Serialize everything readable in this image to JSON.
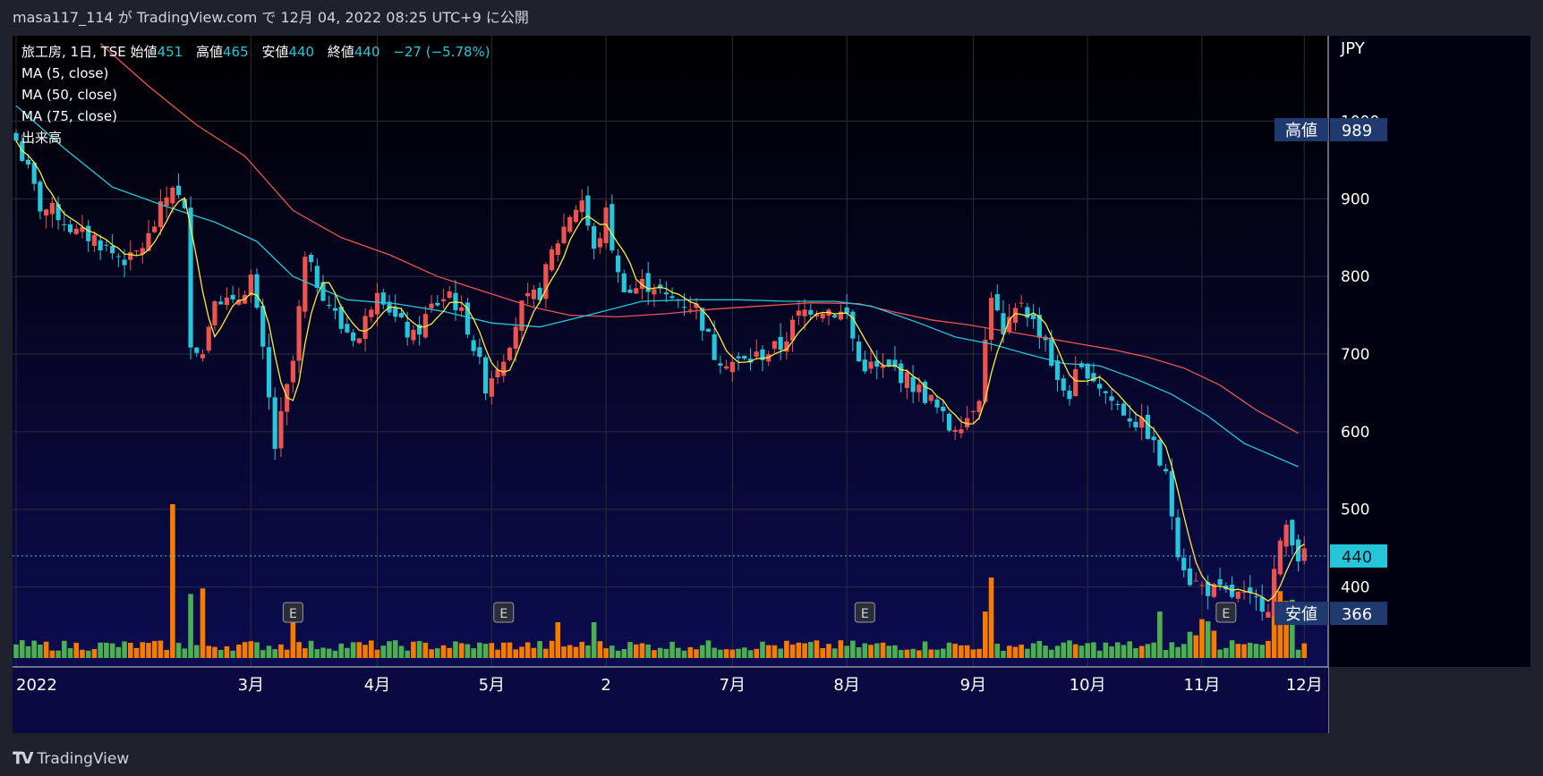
{
  "header": {
    "publisher": "masa117_114",
    "text_ga": "が",
    "platform": "TradingView.com",
    "text_de": "で",
    "date": "12月 04, 2022 08:25 UTC+9",
    "text_published": "に公開"
  },
  "legend": {
    "symbol": "旅工房, 1日, TSE",
    "open_label": "始値",
    "open_value": "451",
    "high_label": "高値",
    "high_value": "465",
    "low_label": "安値",
    "low_value": "440",
    "close_label": "終値",
    "close_value": "440",
    "change": "−27 (−5.78%)",
    "ma5": "MA (5, close)",
    "ma50": "MA (50, close)",
    "ma75": "MA (75, close)",
    "volume": "出来高"
  },
  "footer": {
    "logo_text": "TradingView"
  },
  "colors": {
    "background_top": "#000000",
    "background_bottom": "#0c0c50",
    "up_candle": "#ef5350",
    "down_candle": "#26c6da",
    "ma5": "#ffeb3b",
    "ma50": "#26c6da",
    "ma75": "#ef5350",
    "volume_up": "#f57c00",
    "volume_down": "#4caf50",
    "price_label_bg": "#1e3a6e",
    "current_price_bg": "#26c6da"
  },
  "chart_data": {
    "type": "candlestick",
    "currency": "JPY",
    "y_ticks": [
      400,
      500,
      600,
      700,
      800,
      900,
      1000
    ],
    "ylim": [
      350,
      1110
    ],
    "x_tick_labels": [
      "2022",
      "3月",
      "4月",
      "5月",
      "2",
      "7月",
      "8月",
      "9月",
      "10月",
      "11月",
      "12月"
    ],
    "x_tick_index": [
      0,
      39,
      60,
      79,
      98,
      119,
      138,
      159,
      178,
      197,
      214
    ],
    "markers": {
      "high_label": "高値",
      "high_value": 989,
      "low_label": "安値",
      "low_value": 366,
      "current_price": 440
    },
    "earnings_marker_label": "E",
    "earnings_marker_index": [
      46,
      81,
      141,
      201
    ],
    "high_anchor_index": 0,
    "low_anchor_index": 208,
    "anchors": [
      [
        0,
        975
      ],
      [
        2,
        935
      ],
      [
        4,
        890
      ],
      [
        7,
        880
      ],
      [
        10,
        855
      ],
      [
        13,
        850
      ],
      [
        16,
        830
      ],
      [
        19,
        820
      ],
      [
        22,
        850
      ],
      [
        26,
        920
      ],
      [
        28,
        880
      ],
      [
        29,
        720
      ],
      [
        31,
        700
      ],
      [
        33,
        780
      ],
      [
        36,
        760
      ],
      [
        39,
        800
      ],
      [
        41,
        700
      ],
      [
        43,
        580
      ],
      [
        46,
        690
      ],
      [
        48,
        820
      ],
      [
        51,
        780
      ],
      [
        54,
        735
      ],
      [
        57,
        720
      ],
      [
        60,
        790
      ],
      [
        63,
        745
      ],
      [
        66,
        720
      ],
      [
        69,
        760
      ],
      [
        72,
        780
      ],
      [
        75,
        735
      ],
      [
        78,
        660
      ],
      [
        81,
        700
      ],
      [
        84,
        760
      ],
      [
        87,
        780
      ],
      [
        89,
        830
      ],
      [
        92,
        880
      ],
      [
        94,
        900
      ],
      [
        96,
        830
      ],
      [
        98,
        880
      ],
      [
        100,
        800
      ],
      [
        102,
        780
      ],
      [
        104,
        790
      ],
      [
        106,
        790
      ],
      [
        108,
        770
      ],
      [
        110,
        770
      ],
      [
        113,
        760
      ],
      [
        116,
        700
      ],
      [
        119,
        690
      ],
      [
        121,
        690
      ],
      [
        124,
        700
      ],
      [
        127,
        710
      ],
      [
        130,
        750
      ],
      [
        132,
        760
      ],
      [
        134,
        760
      ],
      [
        138,
        750
      ],
      [
        140,
        690
      ],
      [
        143,
        680
      ],
      [
        146,
        680
      ],
      [
        149,
        660
      ],
      [
        152,
        640
      ],
      [
        155,
        605
      ],
      [
        158,
        620
      ],
      [
        160,
        650
      ],
      [
        162,
        780
      ],
      [
        164,
        720
      ],
      [
        167,
        770
      ],
      [
        169,
        740
      ],
      [
        171,
        720
      ],
      [
        173,
        660
      ],
      [
        175,
        650
      ],
      [
        176,
        670
      ],
      [
        178,
        680
      ],
      [
        180,
        660
      ],
      [
        182,
        640
      ],
      [
        185,
        620
      ],
      [
        188,
        600
      ],
      [
        189,
        580
      ],
      [
        191,
        540
      ],
      [
        193,
        450
      ],
      [
        195,
        410
      ],
      [
        197,
        400
      ],
      [
        199,
        395
      ],
      [
        201,
        390
      ],
      [
        203,
        388
      ],
      [
        205,
        382
      ],
      [
        207,
        380
      ],
      [
        208,
        378
      ],
      [
        209,
        420
      ],
      [
        211,
        480
      ],
      [
        212,
        465
      ],
      [
        213,
        440
      ]
    ],
    "ma50_points": [
      [
        0,
        1020
      ],
      [
        8,
        965
      ],
      [
        16,
        915
      ],
      [
        25,
        890
      ],
      [
        33,
        870
      ],
      [
        40,
        845
      ],
      [
        46,
        800
      ],
      [
        55,
        770
      ],
      [
        63,
        765
      ],
      [
        71,
        755
      ],
      [
        79,
        740
      ],
      [
        87,
        735
      ],
      [
        96,
        752
      ],
      [
        104,
        768
      ],
      [
        112,
        770
      ],
      [
        120,
        770
      ],
      [
        128,
        768
      ],
      [
        136,
        768
      ],
      [
        142,
        762
      ],
      [
        150,
        740
      ],
      [
        156,
        722
      ],
      [
        162,
        713
      ],
      [
        168,
        700
      ],
      [
        174,
        688
      ],
      [
        180,
        685
      ],
      [
        186,
        668
      ],
      [
        192,
        648
      ],
      [
        198,
        620
      ],
      [
        204,
        585
      ],
      [
        213,
        555
      ]
    ],
    "ma75_points": [
      [
        14,
        1100
      ],
      [
        22,
        1045
      ],
      [
        30,
        995
      ],
      [
        38,
        955
      ],
      [
        46,
        885
      ],
      [
        54,
        850
      ],
      [
        62,
        828
      ],
      [
        70,
        800
      ],
      [
        78,
        780
      ],
      [
        86,
        760
      ],
      [
        92,
        750
      ],
      [
        100,
        748
      ],
      [
        108,
        752
      ],
      [
        116,
        758
      ],
      [
        124,
        762
      ],
      [
        132,
        766
      ],
      [
        140,
        765
      ],
      [
        146,
        754
      ],
      [
        152,
        744
      ],
      [
        158,
        738
      ],
      [
        164,
        730
      ],
      [
        170,
        722
      ],
      [
        176,
        714
      ],
      [
        182,
        706
      ],
      [
        188,
        696
      ],
      [
        194,
        682
      ],
      [
        200,
        660
      ],
      [
        206,
        628
      ],
      [
        213,
        598
      ]
    ]
  }
}
